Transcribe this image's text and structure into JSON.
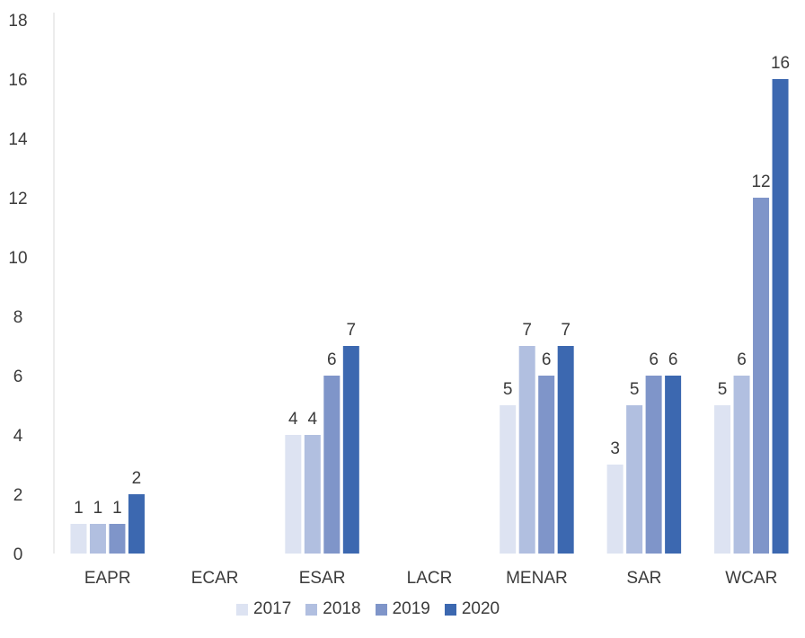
{
  "chart_data": {
    "type": "bar",
    "categories": [
      "EAPR",
      "ECAR",
      "ESAR",
      "LACR",
      "MENAR",
      "SAR",
      "WCAR"
    ],
    "series": [
      {
        "name": "2017",
        "color": "#dde3f2",
        "values": [
          1,
          null,
          4,
          null,
          5,
          3,
          5
        ]
      },
      {
        "name": "2018",
        "color": "#b1bfe0",
        "values": [
          1,
          null,
          4,
          null,
          7,
          5,
          6
        ]
      },
      {
        "name": "2019",
        "color": "#7f95c9",
        "values": [
          1,
          null,
          6,
          null,
          6,
          6,
          12
        ]
      },
      {
        "name": "2020",
        "color": "#3c68b0",
        "values": [
          2,
          null,
          7,
          null,
          7,
          6,
          16
        ]
      }
    ],
    "ylim": [
      0,
      18
    ],
    "yticks": [
      0,
      2,
      4,
      6,
      8,
      10,
      12,
      14,
      16,
      18
    ],
    "data_labels": true,
    "grid": false,
    "legend_position": "bottom"
  }
}
